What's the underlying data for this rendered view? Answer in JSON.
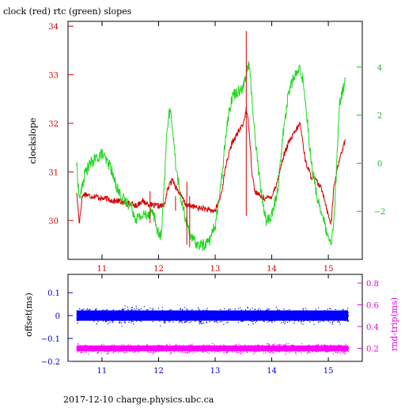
{
  "page": {
    "title": "clock (red) rtc (green) slopes",
    "footer": "2017-12-10 charge.physics.ubc.ca"
  },
  "colors": {
    "clock": "#d40000",
    "rtc": "#1fd61f",
    "offset": "#0000ff",
    "rnd_trip": "#ff00ff",
    "axis_bottom_ticks_alt": "#0000cc"
  },
  "chart_data": [
    {
      "type": "line",
      "title": "clock (red) rtc (green) slopes",
      "xlabel": "",
      "ylabel": "clockslope",
      "y2label": "",
      "x_ticks": [
        "11",
        "12",
        "13",
        "14",
        "15"
      ],
      "x_tick_colors": [
        "#d40000",
        "#d40000",
        "#d40000",
        "#d40000",
        "#d40000"
      ],
      "xlim": [
        10.4,
        15.6
      ],
      "ylim": [
        29.2,
        34.1
      ],
      "y_ticks": [
        "30",
        "31",
        "32",
        "33",
        "34"
      ],
      "y2lim": [
        -4.0,
        5.9
      ],
      "y2_ticks": [
        "−2",
        "0",
        "2",
        "4"
      ],
      "grid": false,
      "series": [
        {
          "name": "clock",
          "axis": "left",
          "color": "#d40000",
          "x": [
            10.55,
            10.6,
            10.65,
            10.7,
            10.8,
            10.9,
            11.0,
            11.1,
            11.2,
            11.3,
            11.4,
            11.5,
            11.6,
            11.7,
            11.8,
            11.9,
            12.0,
            12.1,
            12.15,
            12.2,
            12.25,
            12.3,
            12.4,
            12.5,
            12.6,
            12.7,
            12.8,
            12.9,
            13.0,
            13.1,
            13.2,
            13.3,
            13.4,
            13.5,
            13.55,
            13.6,
            13.65,
            13.7,
            13.8,
            13.9,
            14.0,
            14.1,
            14.2,
            14.3,
            14.4,
            14.5,
            14.55,
            14.6,
            14.7,
            14.8,
            14.9,
            15.0,
            15.05,
            15.1,
            15.15,
            15.2,
            15.3
          ],
          "y": [
            30.6,
            29.95,
            30.5,
            30.55,
            30.5,
            30.5,
            30.45,
            30.45,
            30.4,
            30.4,
            30.35,
            30.35,
            30.3,
            30.4,
            30.35,
            30.3,
            30.3,
            30.3,
            30.6,
            30.75,
            30.85,
            30.7,
            30.5,
            30.3,
            30.3,
            30.25,
            30.25,
            30.2,
            30.2,
            30.5,
            31.2,
            31.6,
            31.8,
            32.0,
            32.3,
            31.9,
            31.0,
            30.6,
            30.5,
            30.45,
            30.5,
            30.8,
            31.3,
            31.6,
            31.8,
            32.0,
            31.6,
            31.2,
            30.9,
            30.8,
            30.6,
            30.1,
            29.95,
            30.7,
            31.0,
            31.3,
            31.65
          ]
        },
        {
          "name": "rtc",
          "axis": "right",
          "color": "#1fd61f",
          "x": [
            10.55,
            10.6,
            10.65,
            10.7,
            10.8,
            10.9,
            11.0,
            11.1,
            11.15,
            11.2,
            11.3,
            11.4,
            11.5,
            11.6,
            11.7,
            11.8,
            11.9,
            12.0,
            12.05,
            12.1,
            12.15,
            12.2,
            12.25,
            12.3,
            12.4,
            12.5,
            12.6,
            12.7,
            12.8,
            12.9,
            13.0,
            13.1,
            13.2,
            13.3,
            13.4,
            13.5,
            13.6,
            13.7,
            13.8,
            13.9,
            14.0,
            14.1,
            14.2,
            14.3,
            14.4,
            14.5,
            14.55,
            14.6,
            14.7,
            14.8,
            14.9,
            15.0,
            15.05,
            15.1,
            15.2,
            15.3
          ],
          "y": [
            0.0,
            -1.5,
            -1.0,
            -0.4,
            0.0,
            0.2,
            0.4,
            0.0,
            -0.1,
            -0.6,
            -1.2,
            -1.6,
            -1.7,
            -2.3,
            -2.2,
            -2.1,
            -2.0,
            -3.0,
            -3.0,
            -1.0,
            1.5,
            2.2,
            1.5,
            0.0,
            -1.6,
            -2.5,
            -3.2,
            -3.4,
            -3.4,
            -3.2,
            -2.6,
            -1.0,
            1.5,
            2.8,
            3.0,
            3.2,
            4.2,
            1.2,
            -1.0,
            -2.4,
            -2.2,
            -1.2,
            1.2,
            3.0,
            3.6,
            3.9,
            3.5,
            2.5,
            0.0,
            -1.4,
            -2.2,
            -3.2,
            -3.4,
            -2.4,
            2.5,
            3.5
          ]
        }
      ],
      "spikes": [
        {
          "x": 11.85,
          "y_low": 29.95,
          "y_high": 30.6
        },
        {
          "x": 12.3,
          "y_low": 30.2,
          "y_high": 30.5
        },
        {
          "x": 12.5,
          "y_low": 29.5,
          "y_high": 30.8
        },
        {
          "x": 12.55,
          "y_low": 29.45,
          "y_high": 30.5
        },
        {
          "x": 13.55,
          "y_low": 30.1,
          "y_high": 33.9
        }
      ]
    },
    {
      "type": "scatter",
      "title": "",
      "xlabel": "",
      "ylabel": "offset(ms)",
      "y2label": "rnd-trip(ms)",
      "x_ticks": [
        "11",
        "12",
        "13",
        "14",
        "15"
      ],
      "x_tick_colors": [
        "#0000cc",
        "#0000cc",
        "#0000cc",
        "#0000cc",
        "#0000cc"
      ],
      "xlim": [
        10.4,
        15.6
      ],
      "ylim": [
        -0.2,
        0.18
      ],
      "y_ticks": [
        "−0.2",
        "−0.1",
        "0",
        "0.1"
      ],
      "y2lim": [
        0.08,
        0.88
      ],
      "y2_ticks": [
        "0.2",
        "0.4",
        "0.6",
        "0.8"
      ],
      "grid": false,
      "series": [
        {
          "name": "offset",
          "axis": "left",
          "color": "#0000ff",
          "center": 0.0,
          "spread": 0.03,
          "x_range": [
            10.55,
            15.35
          ]
        },
        {
          "name": "rnd-trip",
          "axis": "right",
          "color": "#ff00ff",
          "center": 0.2,
          "spread": 0.035,
          "x_range": [
            10.55,
            15.35
          ]
        }
      ]
    }
  ]
}
